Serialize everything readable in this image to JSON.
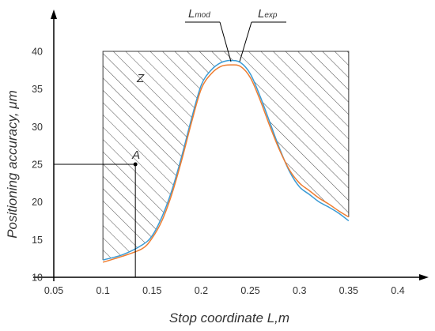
{
  "chart_data": {
    "type": "line",
    "xlabel": "Stop coordinate L,m",
    "ylabel": "Positioning accuracy,  μm",
    "xlim": [
      0.05,
      0.4
    ],
    "ylim": [
      10,
      40
    ],
    "xticks": [
      "0.05",
      "0.1",
      "0.15",
      "0.2",
      "0.25",
      "0.3",
      "0.35",
      "0.4"
    ],
    "yticks": [
      "10",
      "15",
      "20",
      "25",
      "30",
      "35",
      "40"
    ],
    "grid": false,
    "series": [
      {
        "name": "Lmod",
        "color": "#3a9bd5",
        "x": [
          0.1,
          0.12,
          0.14,
          0.15,
          0.16,
          0.17,
          0.18,
          0.19,
          0.2,
          0.21,
          0.22,
          0.23,
          0.24,
          0.25,
          0.26,
          0.27,
          0.28,
          0.29,
          0.3,
          0.31,
          0.32,
          0.33,
          0.34,
          0.35
        ],
        "y": [
          12.3,
          13.0,
          14.3,
          15.5,
          18.0,
          21.5,
          26.0,
          31.0,
          35.5,
          37.5,
          38.5,
          38.8,
          38.5,
          37.0,
          34.0,
          30.5,
          27.0,
          24.0,
          22.0,
          21.0,
          20.0,
          19.3,
          18.5,
          17.5
        ]
      },
      {
        "name": "Lexp",
        "color": "#ee7d31",
        "x": [
          0.1,
          0.12,
          0.14,
          0.15,
          0.16,
          0.17,
          0.18,
          0.19,
          0.2,
          0.21,
          0.22,
          0.23,
          0.24,
          0.25,
          0.26,
          0.27,
          0.28,
          0.29,
          0.3,
          0.31,
          0.32,
          0.33,
          0.34,
          0.35
        ],
        "y": [
          12.0,
          12.8,
          13.8,
          15.2,
          17.5,
          21.0,
          25.5,
          30.5,
          35.0,
          37.0,
          38.0,
          38.2,
          38.0,
          36.5,
          33.5,
          30.0,
          26.8,
          24.2,
          22.5,
          21.5,
          20.5,
          19.7,
          18.8,
          18.0
        ]
      }
    ],
    "zone": {
      "label": "Z",
      "x0": 0.1,
      "x1": 0.35,
      "top": 40
    },
    "point": {
      "label": "A",
      "x": 0.133,
      "y": 25
    },
    "labels": {
      "mod": {
        "main": "L",
        "sub": "mod"
      },
      "exp": {
        "main": "L",
        "sub": "exp"
      }
    }
  }
}
